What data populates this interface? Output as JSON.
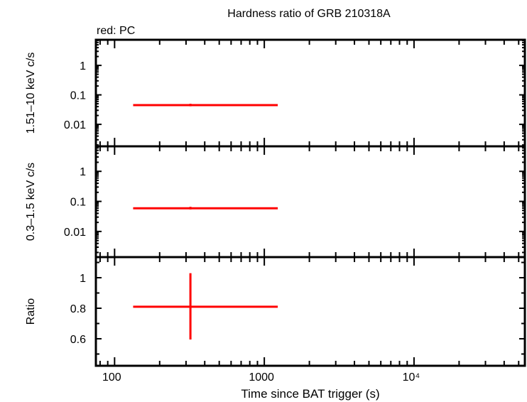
{
  "chart_data": {
    "type": "scatter",
    "title": "Hardness ratio of GRB 210318A",
    "legend": "red: PC",
    "xlabel": "Time since BAT trigger (s)",
    "xscale": "log",
    "xlim": [
      75,
      55000
    ],
    "xticks": [
      {
        "v": 100,
        "label": "100"
      },
      {
        "v": 1000,
        "label": "1000"
      },
      {
        "v": 10000,
        "label": "10⁴"
      }
    ],
    "color": "#ff0000",
    "panels": [
      {
        "ylabel": "1.51–10 keV c/s",
        "yscale": "log",
        "ylim": [
          0.0018,
          7.4
        ],
        "yticks": [
          {
            "v": 1,
            "label": "1"
          },
          {
            "v": 0.1,
            "label": "0.1"
          },
          {
            "v": 0.01,
            "label": "0.01"
          }
        ],
        "points": [
          {
            "x": 321,
            "xlo": 133,
            "xhi": 1230,
            "y": 0.045,
            "ylo": 0.041,
            "yhi": 0.05
          }
        ]
      },
      {
        "ylabel": "0.3–1.5 keV c/s",
        "yscale": "log",
        "ylim": [
          0.0014,
          6.8
        ],
        "yticks": [
          {
            "v": 1,
            "label": "1"
          },
          {
            "v": 0.1,
            "label": "0.1"
          },
          {
            "v": 0.01,
            "label": "0.01"
          }
        ],
        "points": [
          {
            "x": 321,
            "xlo": 133,
            "xhi": 1230,
            "y": 0.059,
            "ylo": 0.054,
            "yhi": 0.066
          }
        ]
      },
      {
        "ylabel": "Ratio",
        "yscale": "linear",
        "ylim": [
          0.423,
          1.135
        ],
        "yticks": [
          {
            "v": 1,
            "label": "1"
          },
          {
            "v": 0.8,
            "label": "0.8"
          },
          {
            "v": 0.6,
            "label": "0.6"
          }
        ],
        "points": [
          {
            "x": 321,
            "xlo": 133,
            "xhi": 1230,
            "y": 0.81,
            "ylo": 0.595,
            "yhi": 1.03
          }
        ]
      }
    ]
  }
}
